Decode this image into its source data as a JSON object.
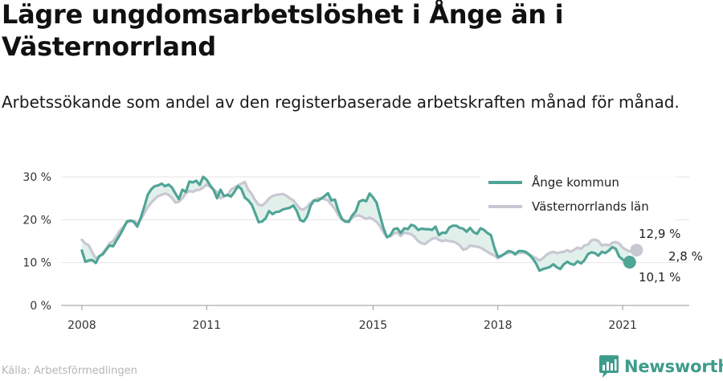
{
  "title": "Lägre ungdomsarbetslöshet i Ånge än i Västernorrland",
  "subtitle": "Arbetssökande som andel av den registerbaserade arbetskraften månad för månad.",
  "source": "Källa: Arbetsförmedlingen",
  "brand": {
    "name": "Newsworthy",
    "icon": "newsworthy-logo-icon",
    "color": "#3e9c8c"
  },
  "chart_data": {
    "type": "line",
    "title": "",
    "xlabel": "",
    "ylabel": "",
    "x_start": "2008-01",
    "x_step": "month",
    "xlim": [
      2007.5,
      2022.6
    ],
    "ylim": [
      0,
      30
    ],
    "y_ticks": [
      {
        "value": 0,
        "label": "0 %"
      },
      {
        "value": 10,
        "label": "10 %"
      },
      {
        "value": 20,
        "label": "20 %"
      },
      {
        "value": 30,
        "label": "30 %"
      }
    ],
    "x_ticks": [
      {
        "value": 2008,
        "label": "2008"
      },
      {
        "value": 2011,
        "label": "2011"
      },
      {
        "value": 2015,
        "label": "2015"
      },
      {
        "value": 2018,
        "label": "2018"
      },
      {
        "value": 2021,
        "label": "2021"
      }
    ],
    "grid": "horizontal",
    "legend": "top-right",
    "series": [
      {
        "name": "Ånge kommun",
        "color": "#4fa595",
        "end_label": "10,1 %",
        "values": [
          12.8,
          10.2,
          10.5,
          10.6,
          9.9,
          11.5,
          11.9,
          13.0,
          14.0,
          13.8,
          15.2,
          16.5,
          18.0,
          19.6,
          19.8,
          19.5,
          18.4,
          20.5,
          23.0,
          25.8,
          27.1,
          27.8,
          28.0,
          28.4,
          27.8,
          28.2,
          27.5,
          26.1,
          24.8,
          27.0,
          26.5,
          28.9,
          28.7,
          29.1,
          28.1,
          30.0,
          29.3,
          28.0,
          27.0,
          25.0,
          27.0,
          25.5,
          25.8,
          25.4,
          26.5,
          27.8,
          27.2,
          25.2,
          24.5,
          23.5,
          21.5,
          19.4,
          19.6,
          20.3,
          22.0,
          21.3,
          21.8,
          21.9,
          22.4,
          22.6,
          22.8,
          23.3,
          22.0,
          19.9,
          19.6,
          20.8,
          23.3,
          24.5,
          24.4,
          24.9,
          25.5,
          26.2,
          24.5,
          24.7,
          22.0,
          20.2,
          19.6,
          19.5,
          21.0,
          21.9,
          24.2,
          24.6,
          24.3,
          26.1,
          25.2,
          24.0,
          21.0,
          18.0,
          15.9,
          16.4,
          17.8,
          18.0,
          16.9,
          18.0,
          17.8,
          18.8,
          18.5,
          17.6,
          17.9,
          17.8,
          17.8,
          17.6,
          18.4,
          16.4,
          17.0,
          16.9,
          18.2,
          18.6,
          18.6,
          18.1,
          17.9,
          17.2,
          18.1,
          17.1,
          16.7,
          18.0,
          17.6,
          16.9,
          16.4,
          13.4,
          11.3,
          11.6,
          12.1,
          12.7,
          12.5,
          11.9,
          12.7,
          12.7,
          12.5,
          11.9,
          11.0,
          9.8,
          8.1,
          8.5,
          8.7,
          9.0,
          9.6,
          8.9,
          8.5,
          9.6,
          10.2,
          9.7,
          9.5,
          10.3,
          9.8,
          10.6,
          12.0,
          12.4,
          12.2,
          11.6,
          12.5,
          12.2,
          12.8,
          13.6,
          13.2,
          11.4,
          10.7,
          9.9,
          10.1
        ]
      },
      {
        "name": "Västernorrlands län",
        "color": "#c8c8d3",
        "end_label": "12,9 %",
        "values": [
          15.3,
          14.5,
          14.0,
          12.4,
          11.0,
          11.4,
          12.2,
          13.3,
          14.5,
          15.0,
          16.2,
          17.5,
          18.4,
          19.3,
          19.7,
          19.7,
          19.2,
          20.0,
          21.5,
          22.9,
          24.0,
          24.8,
          25.5,
          25.8,
          26.1,
          25.8,
          25.1,
          24.0,
          24.2,
          25.0,
          26.2,
          26.7,
          26.5,
          26.9,
          27.0,
          27.5,
          28.2,
          27.7,
          27.0,
          26.5,
          25.0,
          25.5,
          25.7,
          27.0,
          27.5,
          28.0,
          28.4,
          28.8,
          27.0,
          26.0,
          24.5,
          23.5,
          23.3,
          24.0,
          25.0,
          25.5,
          25.8,
          25.9,
          26.0,
          25.6,
          25.0,
          24.5,
          23.5,
          22.5,
          22.4,
          23.0,
          24.0,
          24.5,
          25.0,
          25.0,
          24.8,
          24.5,
          23.5,
          22.5,
          21.0,
          20.0,
          19.5,
          19.8,
          20.5,
          20.9,
          21.0,
          20.6,
          20.2,
          20.5,
          20.1,
          19.5,
          18.5,
          17.0,
          16.0,
          16.1,
          16.8,
          17.0,
          16.2,
          17.0,
          16.8,
          16.6,
          16.0,
          15.0,
          14.5,
          14.3,
          15.0,
          15.5,
          15.8,
          15.3,
          15.0,
          15.2,
          15.0,
          14.9,
          14.6,
          14.0,
          13.0,
          13.2,
          14.0,
          13.8,
          13.7,
          13.5,
          13.0,
          12.5,
          12.0,
          11.6,
          11.0,
          11.5,
          12.0,
          12.2,
          12.5,
          12.2,
          12.2,
          12.3,
          12.2,
          11.8,
          11.5,
          11.0,
          10.5,
          11.0,
          11.8,
          12.3,
          12.5,
          12.2,
          12.4,
          12.5,
          12.9,
          12.5,
          13.0,
          13.5,
          13.2,
          14.0,
          14.2,
          15.2,
          15.4,
          15.0,
          14.0,
          14.2,
          14.0,
          14.6,
          14.8,
          14.5,
          13.5,
          13.0,
          12.6,
          12.8,
          12.9
        ]
      }
    ],
    "annotations": [
      {
        "text": "2,8 %",
        "between": "end points"
      }
    ]
  }
}
